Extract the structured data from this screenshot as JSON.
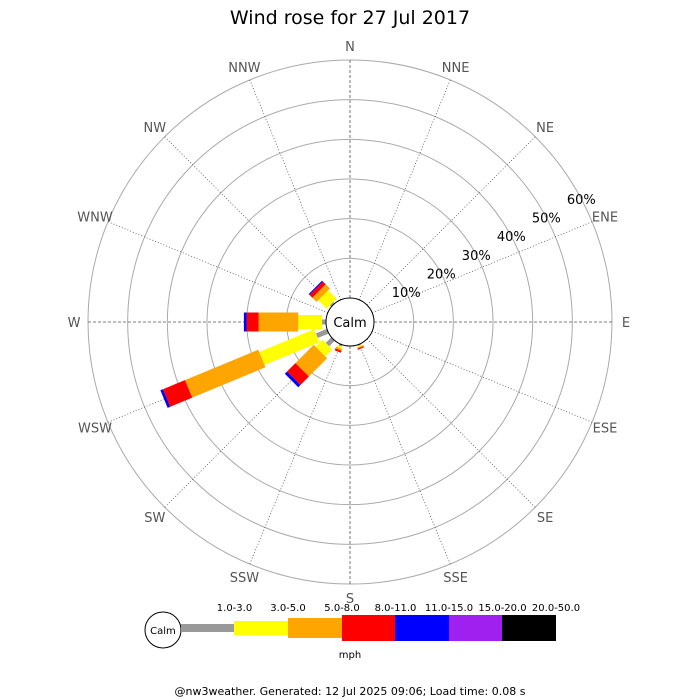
{
  "chart_data": {
    "type": "wind-rose",
    "title": "Wind rose for 27 Jul 2017",
    "directions": [
      "N",
      "NNE",
      "NE",
      "ENE",
      "E",
      "ESE",
      "SE",
      "SSE",
      "S",
      "SSW",
      "SW",
      "WSW",
      "W",
      "WNW",
      "NW",
      "NNW"
    ],
    "radial_ticks": [
      "10%",
      "20%",
      "30%",
      "40%",
      "50%",
      "60%"
    ],
    "radial_max": 60,
    "calm_label": "Calm",
    "unit_label": "mph",
    "speed_bins": [
      {
        "label": "1.0-3.0",
        "color": "#999999"
      },
      {
        "label": "3.0-5.0",
        "color": "#ffff00"
      },
      {
        "label": "5.0-8.0",
        "color": "#ffa500"
      },
      {
        "label": "8.0-11.0",
        "color": "#ff0000"
      },
      {
        "label": "11.0-15.0",
        "color": "#0000ff"
      },
      {
        "label": "15.0-20.0",
        "color": "#a020f0"
      },
      {
        "label": "20.0-50.0",
        "color": "#000000"
      }
    ],
    "frequencies": {
      "NW": [
        0.5,
        3.0,
        1.5,
        1.0,
        0.3,
        0,
        0
      ],
      "W": [
        1.0,
        6.0,
        10.0,
        3.0,
        0.7,
        0,
        0
      ],
      "WSW": [
        3.0,
        15.0,
        20.0,
        6.0,
        0.7,
        0,
        0
      ],
      "SW": [
        2.0,
        2.5,
        6.5,
        3.0,
        0.8,
        0,
        0
      ],
      "SSW": [
        0.5,
        0.5,
        0.5,
        0.5,
        0,
        0,
        0
      ],
      "SSE": [
        0.3,
        0.3,
        0.3,
        0.3,
        0,
        0,
        0
      ]
    }
  },
  "footer": "@nw3weather. Generated: 12 Jul 2025 09:06; Load time: 0.08 s"
}
